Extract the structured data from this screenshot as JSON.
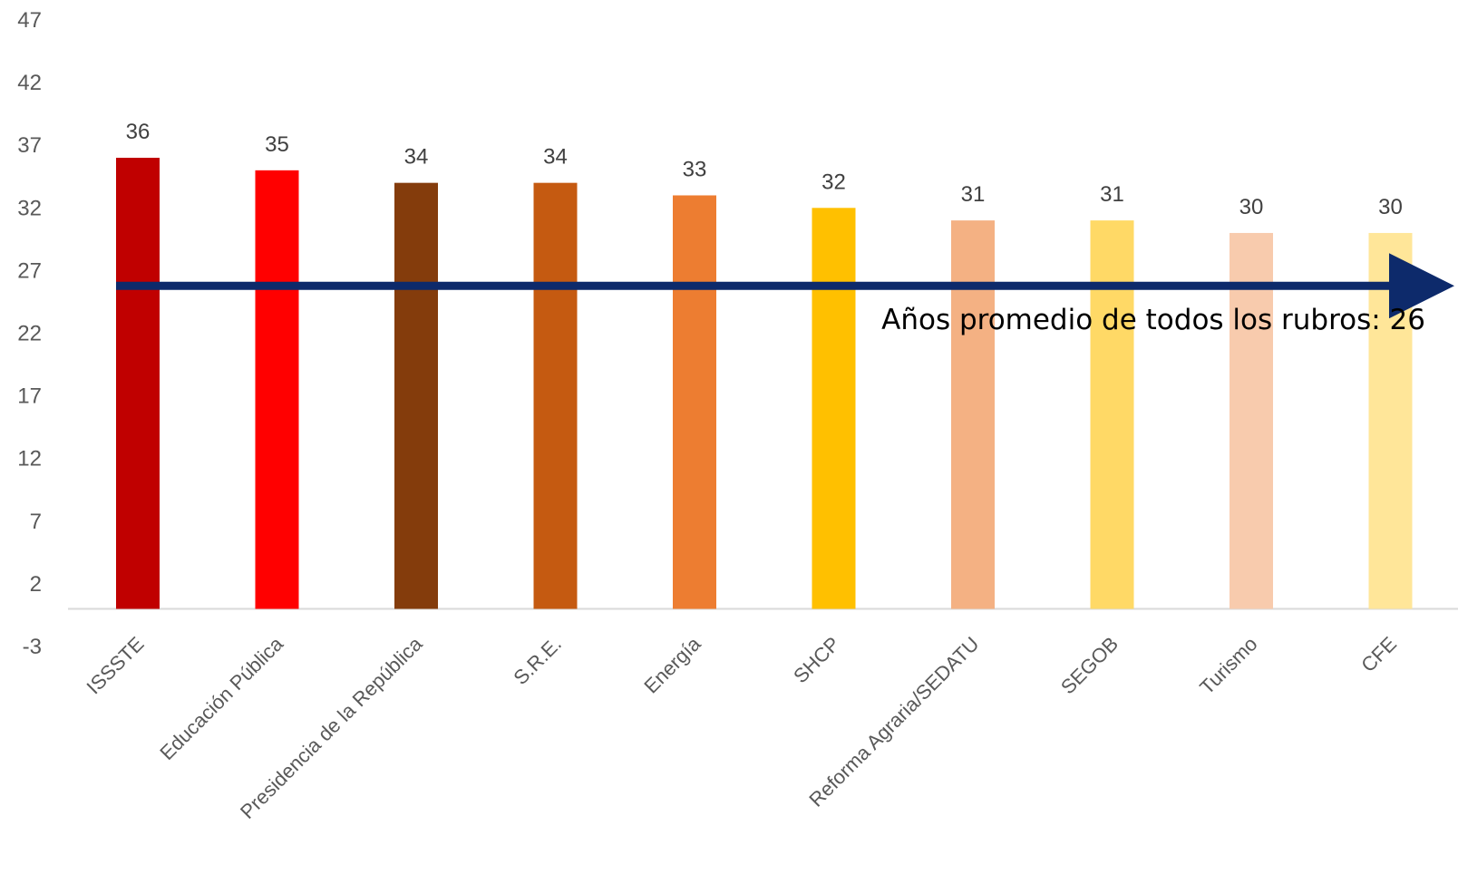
{
  "chart_data": {
    "type": "bar",
    "categories": [
      "ISSSTE",
      "Educación Pública",
      "Presidencia de la República",
      "S.R.E.",
      "Energía",
      "SHCP",
      "Reforma Agraria/SEDATU",
      "SEGOB",
      "Turismo",
      "CFE"
    ],
    "values": [
      36,
      35,
      34,
      34,
      33,
      32,
      31,
      31,
      30,
      30
    ],
    "colors": [
      "#C00000",
      "#FF0000",
      "#843C0C",
      "#C55A11",
      "#ED7D31",
      "#FFC000",
      "#F4B183",
      "#FFD966",
      "#F8CBAD",
      "#FFE699"
    ],
    "ylim": [
      -3,
      47
    ],
    "yticks": [
      "47",
      "42",
      "37",
      "32",
      "27",
      "22",
      "17",
      "12",
      "7",
      "2",
      "-3"
    ],
    "baseline": 0,
    "reference_line": {
      "value": 26,
      "label": "Años promedio de todos los rubros: 26",
      "color": "#0D2A6B",
      "arrow": true
    },
    "gridlines": false,
    "legend": "none"
  }
}
